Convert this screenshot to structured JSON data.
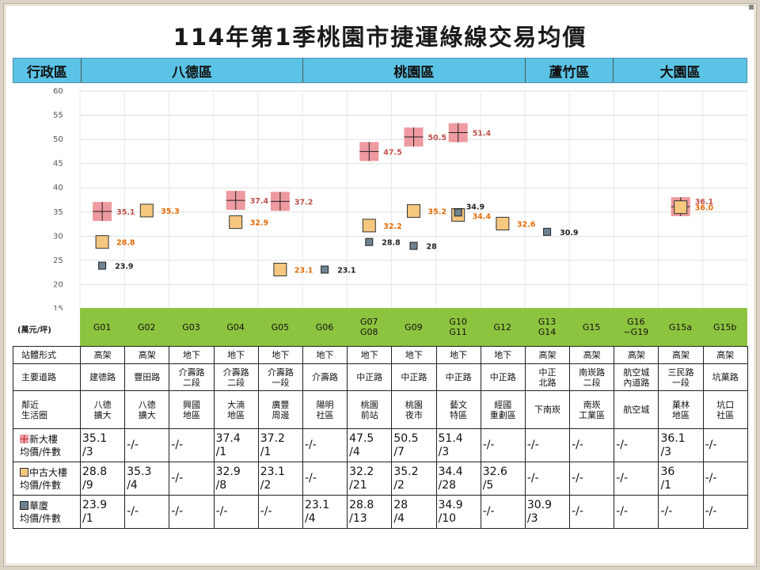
{
  "title": "114年第1季桃園市捷運綠線交易均價",
  "regions": [
    {
      "label": "行政區",
      "span": 1.5
    },
    {
      "label": "八德區",
      "span": 5
    },
    {
      "label": "桃園區",
      "span": 5
    },
    {
      "label": "蘆竹區",
      "span": 2
    },
    {
      "label": "大園區",
      "span": 3
    }
  ],
  "unit_label": "(萬元/坪)",
  "colors": {
    "new": "#ee9aa0",
    "new_text": "#c0504d",
    "old": "#f6c77f",
    "old_text": "#e36c0a",
    "luxury": "#6e8290",
    "luxury_text": "#222222",
    "green": "#8dc43f",
    "blue": "#5bc3e6"
  },
  "chart_data": {
    "type": "scatter",
    "categories": [
      "G01",
      "G02",
      "G03",
      "G04",
      "G05",
      "G06",
      "G07 G08",
      "G09",
      "G10 G11",
      "G12",
      "G13 G14",
      "G15",
      "G16 ~G19",
      "G15a",
      "G15b"
    ],
    "ylim": [
      15,
      60
    ],
    "yticks": [
      15,
      20,
      25,
      30,
      35,
      40,
      45,
      50,
      55,
      60
    ],
    "grid": true,
    "series": [
      {
        "name": "新大樓",
        "marker": "pink-cross",
        "values": [
          35.1,
          null,
          null,
          37.4,
          37.2,
          null,
          47.5,
          50.5,
          51.4,
          null,
          null,
          null,
          null,
          36.1,
          null
        ],
        "labels": [
          "35.1",
          "",
          "",
          "37.4",
          "37.2",
          "",
          "47.5",
          "50.5",
          "51.4",
          "",
          "",
          "",
          "",
          "36.1",
          ""
        ]
      },
      {
        "name": "中古大樓",
        "marker": "orange-square",
        "values": [
          28.8,
          35.3,
          null,
          32.9,
          23.1,
          null,
          32.2,
          35.2,
          34.4,
          32.6,
          null,
          null,
          null,
          36.0,
          null
        ],
        "labels": [
          "28.8",
          "35.3",
          "",
          "32.9",
          "23.1",
          "",
          "32.2",
          "35.2",
          "34.4",
          "32.6",
          "",
          "",
          "",
          "36.0",
          ""
        ]
      },
      {
        "name": "華廈",
        "marker": "gray-square",
        "values": [
          23.9,
          null,
          null,
          null,
          null,
          23.1,
          28.8,
          28,
          34.9,
          null,
          30.9,
          null,
          null,
          null,
          null
        ],
        "labels": [
          "23.9",
          "",
          "",
          "",
          "",
          "23.1",
          "28.8",
          "28",
          "34.9",
          "",
          "30.9",
          "",
          "",
          "",
          ""
        ]
      }
    ]
  },
  "table": {
    "rows": [
      {
        "head": "站體形式",
        "cells": [
          "高架",
          "高架",
          "地下",
          "地下",
          "地下",
          "地下",
          "地下",
          "地下",
          "地下",
          "地下",
          "高架",
          "高架",
          "高架",
          "高架",
          "高架"
        ]
      },
      {
        "head": "主要道路",
        "cells": [
          "建德路",
          "豐田路",
          "介壽路\n二段",
          "介壽路\n二段",
          "介壽路\n一段",
          "介壽路",
          "中正路",
          "中正路",
          "中正路",
          "中正路",
          "中正\n北路",
          "南崁路\n二段",
          "航空城\n內道路",
          "三民路\n一段",
          "坑菓路"
        ]
      },
      {
        "head": "鄰近\n生活圈",
        "cells": [
          "八德\n擴大",
          "八德\n擴大",
          "興國\n地區",
          "大湳\n地區",
          "廣豐\n周邊",
          "陽明\n社區",
          "桃園\n前站",
          "桃園\n夜市",
          "藝文\n特區",
          "經國\n重劃區",
          "下南崁",
          "南崁\n工業區",
          "航空城",
          "菓林\n地區",
          "坑口\n社區"
        ]
      }
    ],
    "price_rows": [
      {
        "marker": "new",
        "head_line1": "新大樓",
        "head_line2": "均價/件數",
        "cells": [
          "35.1\n/3",
          "-/-",
          "-/-",
          "37.4\n/1",
          "37.2\n/1",
          "-/-",
          "47.5\n/4",
          "50.5\n/7",
          "51.4\n/3",
          "-/-",
          "-/-",
          "-/-",
          "-/-",
          "36.1\n/3",
          "-/-"
        ]
      },
      {
        "marker": "old",
        "head_line1": "中古大樓",
        "head_line2": "均價/件數",
        "cells": [
          "28.8\n/9",
          "35.3\n/4",
          "-/-",
          "32.9\n/8",
          "23.1\n/2",
          "-/-",
          "32.2\n/21",
          "35.2\n/2",
          "34.4\n/28",
          "32.6\n/5",
          "-/-",
          "-/-",
          "-/-",
          "36\n/1",
          "-/-"
        ]
      },
      {
        "marker": "lux",
        "head_line1": "華廈",
        "head_line2": "均價/件數",
        "cells": [
          "23.9\n/1",
          "-/-",
          "-/-",
          "-/-",
          "-/-",
          "23.1\n/4",
          "28.8\n/13",
          "28\n/4",
          "34.9\n/10",
          "-/-",
          "30.9\n/3",
          "-/-",
          "-/-",
          "-/-",
          "-/-"
        ]
      }
    ]
  }
}
